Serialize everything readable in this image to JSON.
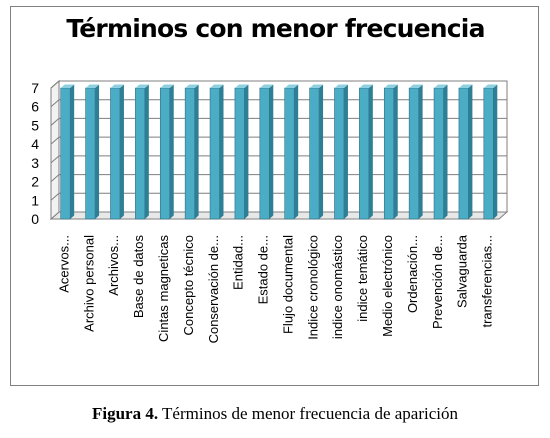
{
  "chart_data": {
    "type": "bar",
    "title": "Términos con menor frecuencia",
    "categories": [
      "Acervos...",
      "Archivo personal",
      "Archivos...",
      "Base de datos",
      "Cintas magneticas",
      "Concepto técnico",
      "Conservación de...",
      "Entidad...",
      "Estado de...",
      "Flujo documental",
      "Indice cronológico",
      "indice onomástico",
      "indice temático",
      "Medio electrónico",
      "Ordenación...",
      "Prevención de...",
      "Salvaguarda",
      "transferencias..."
    ],
    "values": [
      7,
      7,
      7,
      7,
      7,
      7,
      7,
      7,
      7,
      7,
      7,
      7,
      7,
      7,
      7,
      7,
      7,
      7
    ],
    "y_ticks": [
      "0",
      "1",
      "2",
      "3",
      "4",
      "5",
      "6",
      "7"
    ],
    "ylim": [
      0,
      7
    ],
    "grid": true,
    "colors": {
      "bar_front": "#4bacc6",
      "bar_side": "#2e7f95",
      "bar_top": "#8fd0e0",
      "grid": "#7f7f7f",
      "wall": "#ffffff"
    }
  },
  "caption": {
    "label": "Figura 4.",
    "text": " Términos de menor frecuencia de aparición"
  }
}
